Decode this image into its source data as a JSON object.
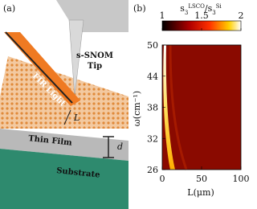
{
  "panel_a": {
    "label": "(a)",
    "tip_label_1": "s-SNOM",
    "tip_label_2": "Tip",
    "light_label": "FIR Light",
    "distance_label": "L",
    "film_label": "Thin Film",
    "thickness_label": "d",
    "substrate_label": "Substrate"
  },
  "panel_b": {
    "label": "(b)",
    "colorbar": {
      "label_parts": [
        "s",
        "3",
        "LSCO",
        "/s",
        "3",
        "Si"
      ],
      "lim": [
        1,
        2
      ],
      "ticks": [
        1,
        1.5,
        2
      ]
    },
    "y_axis": {
      "label": "ω(cm⁻¹)",
      "lim": [
        26,
        50
      ],
      "ticks": [
        26,
        32,
        38,
        44,
        50
      ]
    },
    "x_axis": {
      "label": "L(μm)",
      "lim": [
        0,
        100
      ],
      "ticks": [
        0,
        50,
        100
      ]
    }
  }
}
